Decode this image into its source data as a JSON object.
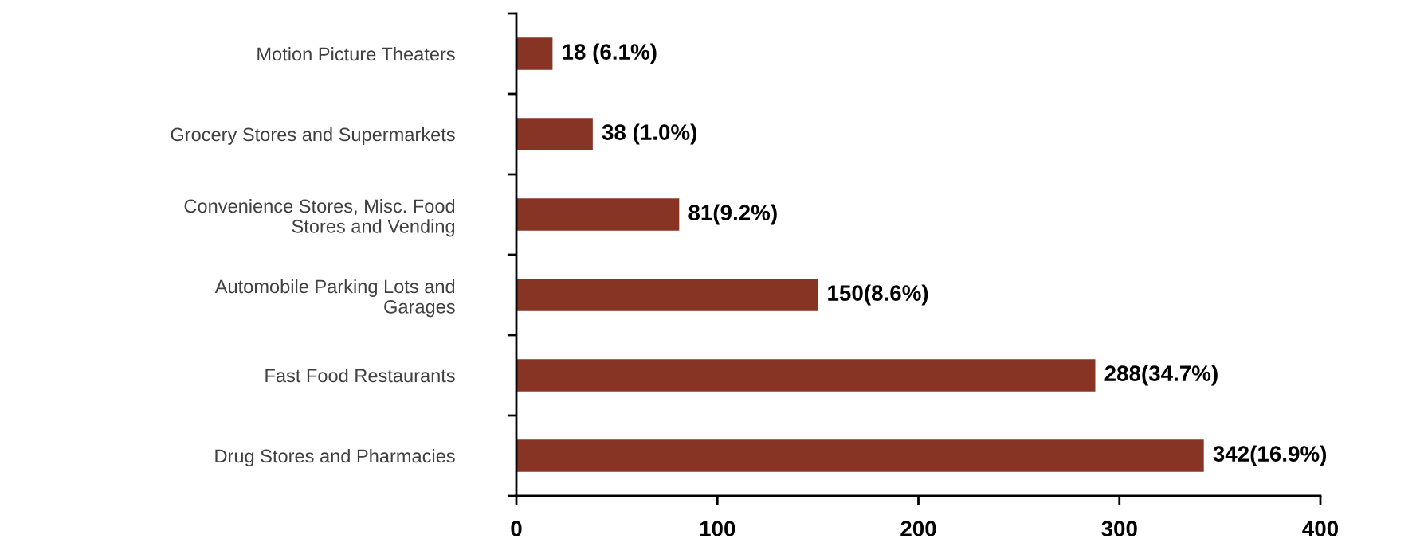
{
  "chart_data": {
    "type": "bar",
    "orientation": "horizontal",
    "categories": [
      "Motion Picture Theaters",
      "Grocery Stores and Supermarkets",
      "Convenience Stores, Misc. Food\nStores and Vending",
      "Automobile Parking Lots and\nGarages",
      "Fast Food Restaurants",
      "Drug Stores and Pharmacies"
    ],
    "values": [
      18,
      38,
      81,
      150,
      288,
      342
    ],
    "value_labels": [
      "18 (6.1%)",
      "38 (1.0%)",
      "81(9.2%)",
      "150(8.6%)",
      "288(34.7%)",
      "342(16.9%)"
    ],
    "color": "#873424",
    "xlim": [
      0,
      400
    ],
    "xticks": [
      0,
      100,
      200,
      300,
      400
    ],
    "grid": false,
    "legend": false
  }
}
